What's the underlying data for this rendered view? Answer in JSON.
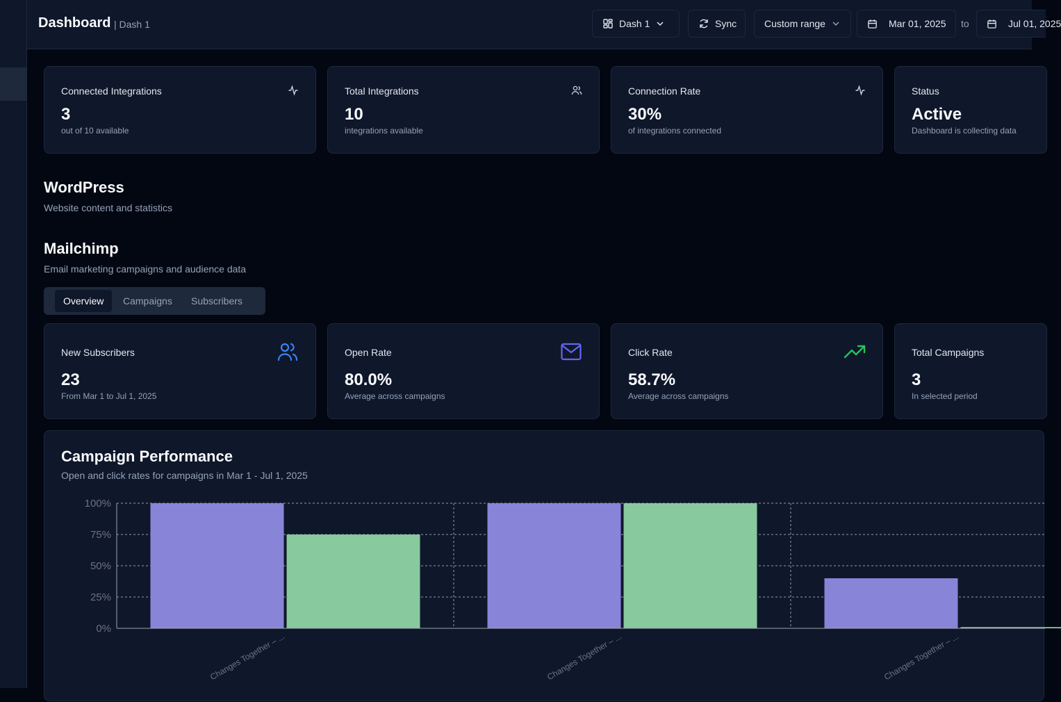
{
  "header": {
    "title": "Dashboard",
    "subtitle": "| Dash 1",
    "dash_selector": "Dash 1",
    "sync_label": "Sync",
    "range_label": "Custom range",
    "date_from": "Mar 01, 2025",
    "to_label": "to",
    "date_to": "Jul 01, 2025"
  },
  "summary_cards": [
    {
      "title": "Connected Integrations",
      "value": "3",
      "sub": "out of 10 available",
      "icon": "activity-icon"
    },
    {
      "title": "Total Integrations",
      "value": "10",
      "sub": "integrations available",
      "icon": "users-icon"
    },
    {
      "title": "Connection Rate",
      "value": "30%",
      "sub": "of integrations connected",
      "icon": "activity-icon"
    },
    {
      "title": "Status",
      "value": "Active",
      "sub": "Dashboard is collecting data",
      "icon": "none"
    }
  ],
  "wordpress": {
    "title": "WordPress",
    "subtitle": "Website content and statistics"
  },
  "mailchimp": {
    "title": "Mailchimp",
    "subtitle": "Email marketing campaigns and audience data",
    "tabs": [
      "Overview",
      "Campaigns",
      "Subscribers"
    ],
    "active_tab": "Overview",
    "cards": [
      {
        "title": "New Subscribers",
        "value": "23",
        "sub": "From Mar 1 to Jul 1, 2025",
        "icon": "users-icon",
        "icon_color": "#3b82f6"
      },
      {
        "title": "Open Rate",
        "value": "80.0%",
        "sub": "Average across campaigns",
        "icon": "mail-icon",
        "icon_color": "#6366f1"
      },
      {
        "title": "Click Rate",
        "value": "58.7%",
        "sub": "Average across campaigns",
        "icon": "trending-up-icon",
        "icon_color": "#22c55e"
      },
      {
        "title": "Total Campaigns",
        "value": "3",
        "sub": "In selected period",
        "icon": "none"
      }
    ]
  },
  "performance": {
    "title": "Campaign Performance",
    "subtitle": "Open and click rates for campaigns in Mar 1 - Jul 1, 2025"
  },
  "chart_data": {
    "type": "bar",
    "categories": [
      "Changes Together – ...",
      "Changes Together – ...",
      "Changes Together – ..."
    ],
    "series": [
      {
        "values": [
          100,
          100,
          40
        ],
        "color": "#8884d8"
      },
      {
        "values": [
          75,
          100,
          1
        ],
        "color": "#88c99e"
      }
    ],
    "ylim": [
      0,
      100
    ],
    "yticks": [
      "0%",
      "25%",
      "50%",
      "75%",
      "100%"
    ],
    "grid": true
  }
}
